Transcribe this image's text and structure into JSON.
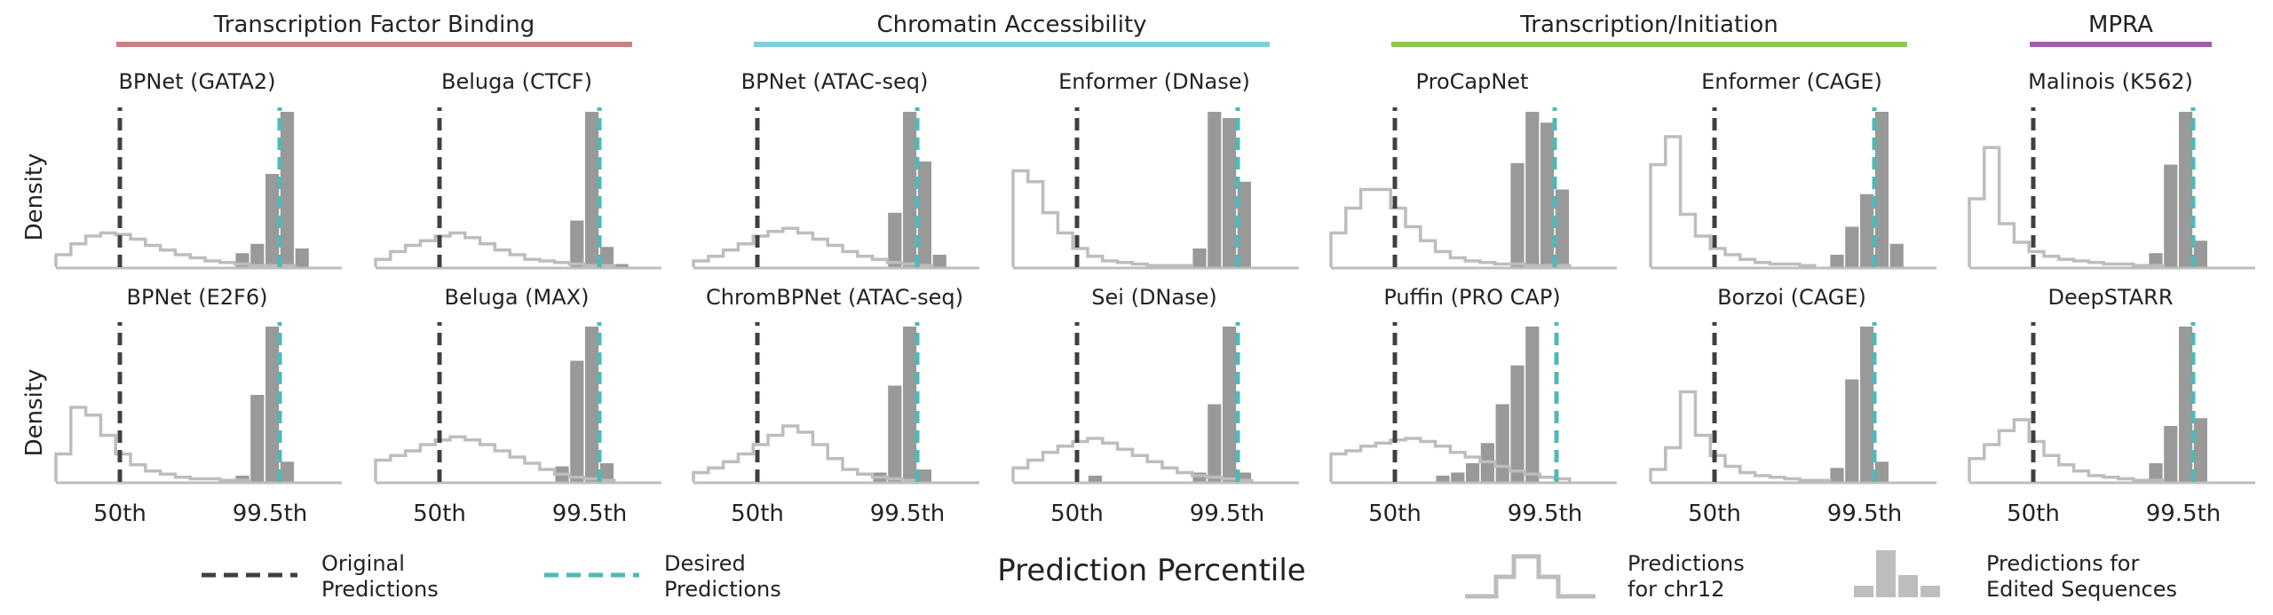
{
  "colors": {
    "original": "#404040",
    "desired": "#4fb8b8",
    "chr12": "#bdbdbd",
    "edited": "#999999",
    "axis": "#bdbdbd"
  },
  "groups": [
    {
      "title": "Transcription Factor Binding",
      "color": "#cd7f7f",
      "cols": [
        0,
        1
      ]
    },
    {
      "title": "Chromatin Accessibility",
      "color": "#7ecfde",
      "cols": [
        2,
        3
      ]
    },
    {
      "title": "Transcription/Initiation",
      "color": "#8cc653",
      "cols": [
        4,
        5
      ]
    },
    {
      "title": "MPRA",
      "color": "#a05db0",
      "cols": [
        6
      ]
    }
  ],
  "y_label": "Density",
  "x_label": "Prediction Percentile",
  "x_ticks": [
    "50th",
    "99.5th"
  ],
  "legend": {
    "original": "Original\nPredictions",
    "desired": "Desired\nPredictions",
    "chr12": "Predictions\nfor chr12",
    "edited": "Predictions for\nEdited Sequences"
  },
  "chart_data": [
    {
      "type": "histogram",
      "row": 0,
      "col": 0,
      "title": "BPNet  (GATA2)",
      "x_ticks": [
        "50th",
        "99.5th"
      ],
      "chr12": [
        0.08,
        0.15,
        0.2,
        0.22,
        0.21,
        0.18,
        0.14,
        0.11,
        0.08,
        0.06,
        0.04,
        0.03,
        0.02,
        0.01,
        0.01,
        0.01
      ],
      "edited_bins": [
        12,
        13,
        14,
        15,
        16
      ],
      "edited": [
        0.09,
        0.15,
        0.6,
        1.0,
        0.12
      ]
    },
    {
      "type": "histogram",
      "row": 0,
      "col": 1,
      "title": "Beluga  (CTCF)",
      "x_ticks": [
        "50th",
        "99.5th"
      ],
      "chr12": [
        0.05,
        0.1,
        0.14,
        0.17,
        0.2,
        0.22,
        0.19,
        0.15,
        0.11,
        0.08,
        0.05,
        0.04,
        0.03,
        0.02,
        0.01,
        0.01
      ],
      "edited_bins": [
        13,
        14,
        15,
        16
      ],
      "edited": [
        0.3,
        1.0,
        0.13,
        0.02
      ]
    },
    {
      "type": "histogram",
      "row": 0,
      "col": 2,
      "title": "BPNet  (ATAC-seq)",
      "x_ticks": [
        "50th",
        "99.5th"
      ],
      "chr12": [
        0.04,
        0.07,
        0.11,
        0.15,
        0.2,
        0.23,
        0.25,
        0.22,
        0.18,
        0.14,
        0.1,
        0.07,
        0.05,
        0.03,
        0.02,
        0.01
      ],
      "edited_bins": [
        13,
        14,
        15,
        16
      ],
      "edited": [
        0.35,
        1.0,
        0.68,
        0.08
      ]
    },
    {
      "type": "histogram",
      "row": 0,
      "col": 3,
      "title": "Enformer  (DNase)",
      "x_ticks": [
        "50th",
        "99.5th"
      ],
      "chr12": [
        0.62,
        0.55,
        0.35,
        0.22,
        0.12,
        0.07,
        0.04,
        0.03,
        0.02,
        0.01,
        0.01,
        0.01
      ],
      "edited_bins": [
        12,
        13,
        14,
        15
      ],
      "edited": [
        0.12,
        1.0,
        0.96,
        0.55
      ]
    },
    {
      "type": "histogram",
      "row": 0,
      "col": 4,
      "title": "ProCapNet",
      "x_ticks": [
        "50th",
        "99.5th"
      ],
      "chr12": [
        0.22,
        0.38,
        0.5,
        0.5,
        0.38,
        0.26,
        0.17,
        0.1,
        0.06,
        0.04,
        0.03,
        0.02,
        0.02,
        0.01,
        0.01,
        0.01
      ],
      "edited_bins": [
        12,
        13,
        14,
        15
      ],
      "edited": [
        0.67,
        1.0,
        0.93,
        0.5
      ]
    },
    {
      "type": "histogram",
      "row": 0,
      "col": 5,
      "title": "Enformer  (CAGE)",
      "x_ticks": [
        "50th",
        "99.5th"
      ],
      "chr12": [
        0.66,
        0.84,
        0.34,
        0.2,
        0.12,
        0.08,
        0.05,
        0.03,
        0.02,
        0.02,
        0.01
      ],
      "edited_bins": [
        12,
        13,
        14,
        15,
        16
      ],
      "edited": [
        0.08,
        0.26,
        0.47,
        1.0,
        0.15
      ]
    },
    {
      "type": "histogram",
      "row": 0,
      "col": 6,
      "title": "Malinois  (K562)",
      "x_ticks": [
        "50th",
        "99.5th"
      ],
      "chr12": [
        0.44,
        0.77,
        0.28,
        0.16,
        0.1,
        0.07,
        0.05,
        0.04,
        0.03,
        0.02,
        0.02,
        0.01,
        0.01
      ],
      "edited_bins": [
        12,
        13,
        14,
        15
      ],
      "edited": [
        0.09,
        0.66,
        1.0,
        0.17
      ]
    },
    {
      "type": "histogram",
      "row": 1,
      "col": 0,
      "title": "BPNet  (E2F6)",
      "x_ticks": [
        "50th",
        "99.5th"
      ],
      "chr12": [
        0.18,
        0.48,
        0.43,
        0.3,
        0.18,
        0.11,
        0.07,
        0.05,
        0.03,
        0.02,
        0.02,
        0.01,
        0.01
      ],
      "edited_bins": [
        12,
        13,
        14,
        15
      ],
      "edited": [
        0.04,
        0.56,
        1.0,
        0.13
      ]
    },
    {
      "type": "histogram",
      "row": 1,
      "col": 1,
      "title": "Beluga  (MAX)",
      "x_ticks": [
        "50th",
        "99.5th"
      ],
      "chr12": [
        0.14,
        0.17,
        0.2,
        0.24,
        0.27,
        0.29,
        0.27,
        0.24,
        0.2,
        0.16,
        0.12,
        0.08,
        0.05,
        0.03,
        0.02,
        0.01
      ],
      "edited_bins": [
        12,
        13,
        14,
        15
      ],
      "edited": [
        0.1,
        0.78,
        1.0,
        0.12
      ]
    },
    {
      "type": "histogram",
      "row": 1,
      "col": 2,
      "title": "ChromBPNet  (ATAC-seq)",
      "x_ticks": [
        "50th",
        "99.5th"
      ],
      "chr12": [
        0.06,
        0.09,
        0.13,
        0.18,
        0.24,
        0.3,
        0.36,
        0.32,
        0.24,
        0.15,
        0.08,
        0.05,
        0.03,
        0.02,
        0.01
      ],
      "edited_bins": [
        12,
        13,
        14,
        15
      ],
      "edited": [
        0.06,
        0.62,
        1.0,
        0.08
      ]
    },
    {
      "type": "histogram",
      "row": 1,
      "col": 3,
      "title": "Sei  (DNase)",
      "x_ticks": [
        "50th",
        "99.5th"
      ],
      "chr12": [
        0.09,
        0.14,
        0.19,
        0.23,
        0.26,
        0.28,
        0.25,
        0.21,
        0.17,
        0.13,
        0.09,
        0.06,
        0.04,
        0.03,
        0.02,
        0.01
      ],
      "edited_bins": [
        5,
        12,
        13,
        14,
        15
      ],
      "edited": [
        0.04,
        0.06,
        0.5,
        1.0,
        0.06
      ]
    },
    {
      "type": "histogram",
      "row": 1,
      "col": 4,
      "title": "Puffin   (PRO CAP)",
      "x_ticks": [
        "50th",
        "99.5th"
      ],
      "chr12": [
        0.18,
        0.2,
        0.23,
        0.25,
        0.27,
        0.28,
        0.26,
        0.23,
        0.19,
        0.16,
        0.13,
        0.1,
        0.07,
        0.05,
        0.03,
        0.02
      ],
      "edited_bins": [
        7,
        8,
        9,
        10,
        11,
        12,
        13
      ],
      "edited": [
        0.04,
        0.06,
        0.12,
        0.25,
        0.5,
        0.75,
        1.0
      ]
    },
    {
      "type": "histogram",
      "row": 1,
      "col": 5,
      "title": "Borzoi  (CAGE)",
      "x_ticks": [
        "50th",
        "99.5th"
      ],
      "chr12": [
        0.08,
        0.22,
        0.58,
        0.3,
        0.17,
        0.1,
        0.06,
        0.04,
        0.03,
        0.02,
        0.01,
        0.01
      ],
      "edited_bins": [
        12,
        13,
        14,
        15
      ],
      "edited": [
        0.09,
        0.66,
        1.0,
        0.13
      ]
    },
    {
      "type": "histogram",
      "row": 1,
      "col": 6,
      "title": "DeepSTARR",
      "x_ticks": [
        "50th",
        "99.5th"
      ],
      "chr12": [
        0.15,
        0.24,
        0.33,
        0.4,
        0.26,
        0.17,
        0.11,
        0.07,
        0.04,
        0.03,
        0.02,
        0.01,
        0.01
      ],
      "edited_bins": [
        12,
        13,
        14,
        15
      ],
      "edited": [
        0.12,
        0.36,
        1.0,
        0.41
      ]
    }
  ]
}
